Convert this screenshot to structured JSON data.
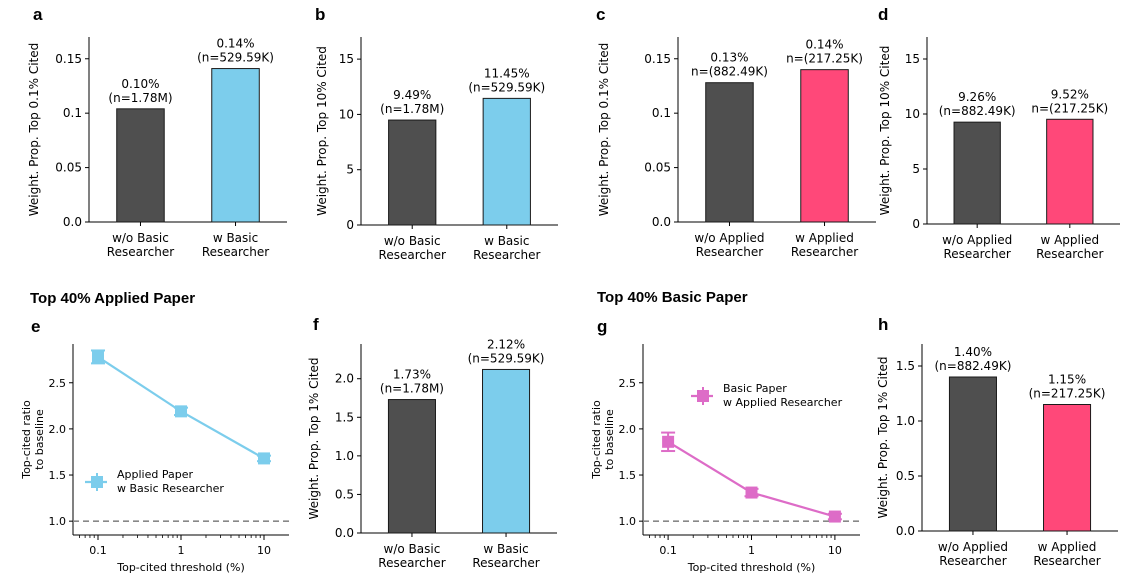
{
  "colors": {
    "dark": "#4f4f4f",
    "blue": "#7ccdec",
    "pink": "#ff4879",
    "magenta": "#dd6cc7",
    "baseline": "#888888"
  },
  "section_titles": {
    "applied": "Top 40% Applied Paper",
    "basic": "Top 40% Basic Paper"
  },
  "chart_data": [
    {
      "panel": "a",
      "type": "bar",
      "ylabel": "Weight. Prop. Top 0.1% Cited",
      "ylim": [
        0,
        0.17
      ],
      "yticks": [
        0,
        0.05,
        0.1,
        0.15
      ],
      "yticklabels": [
        "0.0",
        "0.05",
        "0.1",
        "0.15"
      ],
      "bars": [
        {
          "cat": [
            "w/o Basic",
            "Researcher"
          ],
          "value": 0.104,
          "label": [
            "0.10%",
            "(n=1.78M)"
          ],
          "color": "dark"
        },
        {
          "cat": [
            "w Basic",
            "Researcher"
          ],
          "value": 0.141,
          "label": [
            "0.14%",
            "(n=529.59K)"
          ],
          "color": "blue"
        }
      ]
    },
    {
      "panel": "b",
      "type": "bar",
      "ylabel": "Weight. Prop. Top 10% Cited",
      "ylim": [
        0,
        17
      ],
      "yticks": [
        0,
        5,
        10,
        15
      ],
      "yticklabels": [
        "0",
        "5",
        "10",
        "15"
      ],
      "bars": [
        {
          "cat": [
            "w/o Basic",
            "Researcher"
          ],
          "value": 9.49,
          "label": [
            "9.49%",
            "(n=1.78M)"
          ],
          "color": "dark"
        },
        {
          "cat": [
            "w Basic",
            "Researcher"
          ],
          "value": 11.45,
          "label": [
            "11.45%",
            "(n=529.59K)"
          ],
          "color": "blue"
        }
      ]
    },
    {
      "panel": "c",
      "type": "bar",
      "ylabel": "Weight. Prop. Top 0.1% Cited",
      "ylim": [
        0,
        0.17
      ],
      "yticks": [
        0,
        0.05,
        0.1,
        0.15
      ],
      "yticklabels": [
        "0.0",
        "0.05",
        "0.1",
        "0.15"
      ],
      "bars": [
        {
          "cat": [
            "w/o Applied",
            "Researcher"
          ],
          "value": 0.128,
          "label": [
            "0.13%",
            "n=(882.49K)"
          ],
          "color": "dark"
        },
        {
          "cat": [
            "w Applied",
            "Researcher"
          ],
          "value": 0.14,
          "label": [
            "0.14%",
            "n=(217.25K)"
          ],
          "color": "pink"
        }
      ]
    },
    {
      "panel": "d",
      "type": "bar",
      "ylabel": "Weight. Prop. Top 10% Cited",
      "ylim": [
        0,
        17
      ],
      "yticks": [
        0,
        5,
        10,
        15
      ],
      "yticklabels": [
        "0",
        "5",
        "10",
        "15"
      ],
      "bars": [
        {
          "cat": [
            "w/o Applied",
            "Researcher"
          ],
          "value": 9.26,
          "label": [
            "9.26%",
            "(n=882.49K)"
          ],
          "color": "dark"
        },
        {
          "cat": [
            "w Applied",
            "Researcher"
          ],
          "value": 9.52,
          "label": [
            "9.52%",
            "n=(217.25K)"
          ],
          "color": "pink"
        }
      ]
    },
    {
      "panel": "e",
      "type": "line",
      "xscale": "log",
      "xlabel": "Top-cited threshold (%)",
      "ylabel": [
        "Top-cited ratio",
        "to baseline"
      ],
      "xlim": [
        0.05,
        20
      ],
      "ylim": [
        0.85,
        2.92
      ],
      "xticks": [
        0.1,
        1,
        10
      ],
      "xticklabels": [
        "0.1",
        "1",
        "10"
      ],
      "yticks": [
        1.0,
        1.5,
        2.0,
        2.5
      ],
      "yticklabels": [
        "1.0",
        "1.5",
        "2.0",
        "2.5"
      ],
      "baseline": 1.0,
      "series": [
        {
          "name": [
            "Applied Paper",
            "w Basic Researcher"
          ],
          "color": "blue",
          "x": [
            0.1,
            1,
            10
          ],
          "y": [
            2.78,
            2.19,
            1.68
          ],
          "err": [
            0.07,
            0.04,
            0.03
          ]
        }
      ],
      "legend_loc": "lower-left"
    },
    {
      "panel": "f",
      "type": "bar",
      "ylabel": "Weight. Prop. Top 1% Cited",
      "ylim": [
        0,
        2.45
      ],
      "yticks": [
        0,
        0.5,
        1.0,
        1.5,
        2.0
      ],
      "yticklabels": [
        "0.0",
        "0.5",
        "1.0",
        "1.5",
        "2.0"
      ],
      "bars": [
        {
          "cat": [
            "w/o Basic",
            "Researcher"
          ],
          "value": 1.73,
          "label": [
            "1.73%",
            "(n=1.78M)"
          ],
          "color": "dark"
        },
        {
          "cat": [
            "w Basic",
            "Researcher"
          ],
          "value": 2.12,
          "label": [
            "2.12%",
            "(n=529.59K)"
          ],
          "color": "blue"
        }
      ]
    },
    {
      "panel": "g",
      "type": "line",
      "xscale": "log",
      "xlabel": "Top-cited threshold (%)",
      "ylabel": [
        "Top-cited ratio",
        "to baseline"
      ],
      "xlim": [
        0.05,
        20
      ],
      "ylim": [
        0.85,
        2.92
      ],
      "xticks": [
        0.1,
        1,
        10
      ],
      "xticklabels": [
        "0.1",
        "1",
        "10"
      ],
      "yticks": [
        1.0,
        1.5,
        2.0,
        2.5
      ],
      "yticklabels": [
        "1.0",
        "1.5",
        "2.0",
        "2.5"
      ],
      "baseline": 1.0,
      "series": [
        {
          "name": [
            "Basic Paper",
            "w Applied Researcher"
          ],
          "color": "magenta",
          "x": [
            0.1,
            1,
            10
          ],
          "y": [
            1.86,
            1.31,
            1.05
          ],
          "err": [
            0.1,
            0.04,
            0.03
          ]
        }
      ],
      "legend_loc": "upper-right"
    },
    {
      "panel": "h",
      "type": "bar",
      "ylabel": "Weight. Prop. Top 1% Cited",
      "ylim": [
        0,
        1.7
      ],
      "yticks": [
        0,
        0.5,
        1.0,
        1.5
      ],
      "yticklabels": [
        "0.0",
        "0.5",
        "1.0",
        "1.5"
      ],
      "bars": [
        {
          "cat": [
            "w/o Applied",
            "Researcher"
          ],
          "value": 1.4,
          "label": [
            "1.40%",
            "(n=882.49K)"
          ],
          "color": "dark"
        },
        {
          "cat": [
            "w Applied",
            "Researcher"
          ],
          "value": 1.15,
          "label": [
            "1.15%",
            "(n=217.25K)"
          ],
          "color": "pink"
        }
      ]
    }
  ]
}
